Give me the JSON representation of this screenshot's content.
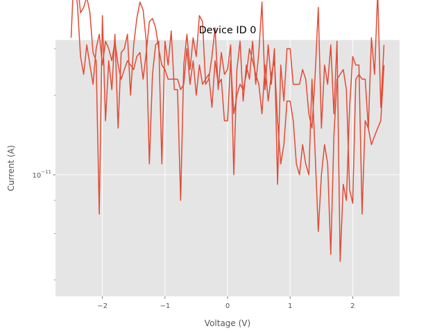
{
  "chart_data": {
    "type": "line",
    "title": "Device ID 0",
    "xlabel": "Voltage (V)",
    "ylabel": "Current (A)",
    "xlim": [
      -2.75,
      2.75
    ],
    "ylim_log10": [
      -11.46,
      -10.49
    ],
    "y_scale": "log",
    "grid": true,
    "x_ticks": [
      {
        "value": -2,
        "label": "−2"
      },
      {
        "value": -1,
        "label": "−1"
      },
      {
        "value": 0,
        "label": "0"
      },
      {
        "value": 1,
        "label": "1"
      },
      {
        "value": 2,
        "label": "2"
      }
    ],
    "y_ticks_major": [
      {
        "log10": -11,
        "base": "10",
        "exp": "−11"
      }
    ],
    "y_ticks_minor_log10": [
      -11.398,
      -11.222,
      -11.097,
      -10.699,
      -10.523
    ],
    "series": [
      {
        "color": "#E24A33",
        "x": [
          -2.5,
          -2.45,
          -2.4,
          -2.35,
          -2.3,
          -2.25,
          -2.2,
          -2.15,
          -2.1,
          -2.05,
          -2.0,
          -1.95,
          -1.9,
          -1.85,
          -1.8,
          -1.75,
          -1.7,
          -1.65,
          -1.6,
          -1.55,
          -1.5,
          -1.45,
          -1.4,
          -1.35,
          -1.3,
          -1.25,
          -1.2,
          -1.15,
          -1.1,
          -1.05,
          -1.0,
          -0.95,
          -0.9,
          -0.85,
          -0.8,
          -0.75,
          -0.7,
          -0.65,
          -0.6,
          -0.55,
          -0.5,
          -0.45,
          -0.4,
          -0.35,
          -0.3,
          -0.25,
          -0.2,
          -0.15,
          -0.1,
          -0.05,
          0.0,
          0.05,
          0.1,
          0.15,
          0.2,
          0.25,
          0.3,
          0.35,
          0.4,
          0.45,
          0.5,
          0.55,
          0.6,
          0.65,
          0.7,
          0.75,
          0.8,
          0.85,
          0.9,
          0.95,
          1.0,
          1.05,
          1.1,
          1.15,
          1.2,
          1.25,
          1.3,
          1.35,
          1.4,
          1.45,
          1.5,
          1.55,
          1.6,
          1.65,
          1.7,
          1.75,
          1.8,
          1.85,
          1.9,
          1.95,
          2.0,
          2.05,
          2.1,
          2.15,
          2.2,
          2.25,
          2.3,
          2.35,
          2.4,
          2.45,
          2.5
        ],
        "y": [
          5.6e-11,
          5.6e-11,
          4.4e-11,
          2.8e-11,
          2.4e-11,
          3.1e-11,
          2.6e-11,
          2.2e-11,
          3e-11,
          3.4e-11,
          2.6e-11,
          3.2e-11,
          3e-11,
          2.7e-11,
          3.2e-11,
          2.6e-11,
          2.3e-11,
          2.5e-11,
          2.7e-11,
          2.6e-11,
          2.5e-11,
          2.8e-11,
          2.9e-11,
          2.3e-11,
          2.9e-11,
          3.8e-11,
          3.9e-11,
          3.6e-11,
          3e-11,
          2.6e-11,
          2.5e-11,
          2.3e-11,
          2.3e-11,
          2.3e-11,
          2.3e-11,
          2.1e-11,
          2.2e-11,
          3e-11,
          2.2e-11,
          2.7e-11,
          2e-11,
          2.6e-11,
          2.2e-11,
          2.3e-11,
          2.4e-11,
          1.8e-11,
          2.7e-11,
          2.2e-11,
          2.3e-11,
          1.6e-11,
          1.6e-11,
          2.7e-11,
          1.7e-11,
          2e-11,
          2.2e-11,
          2.1e-11,
          2.4e-11,
          3e-11,
          2.7e-11,
          2.4e-11,
          2.2e-11,
          1.7e-11,
          2.6e-11,
          1.9e-11,
          2.4e-11,
          2.7e-11,
          1.6e-11,
          1.1e-11,
          1.3e-11,
          1.9e-11,
          1.9e-11,
          1.6e-11,
          1.1e-11,
          1e-11,
          1.3e-11,
          1.1e-11,
          1e-11,
          2.3e-11,
          1.2e-11,
          6.1e-12,
          1e-11,
          1.3e-11,
          1.1e-11,
          5e-12,
          1.4e-11,
          2.3e-11,
          2.4e-11,
          2.5e-11,
          2.1e-11,
          8.8e-12,
          7.8e-12,
          2.3e-11,
          2.4e-11,
          2.3e-11,
          2.3e-11,
          1.5e-11,
          1.3e-11,
          1.4e-11,
          1.5e-11,
          1.6e-11,
          2.6e-11
        ]
      },
      {
        "color": "#E24A33",
        "x": [
          -2.5,
          -2.45,
          -2.4,
          -2.35,
          -2.3,
          -2.25,
          -2.2,
          -2.15,
          -2.1,
          -2.05,
          -2.0,
          -1.95,
          -1.9,
          -1.85,
          -1.8,
          -1.75,
          -1.7,
          -1.65,
          -1.6,
          -1.55,
          -1.5,
          -1.45,
          -1.4,
          -1.35,
          -1.3,
          -1.25,
          -1.2,
          -1.15,
          -1.1,
          -1.05,
          -1.0,
          -0.95,
          -0.9,
          -0.85,
          -0.8,
          -0.75,
          -0.7,
          -0.65,
          -0.6,
          -0.55,
          -0.5,
          -0.45,
          -0.4,
          -0.35,
          -0.3,
          -0.25,
          -0.2,
          -0.15,
          -0.1,
          -0.05,
          0.0,
          0.05,
          0.1,
          0.15,
          0.2,
          0.25,
          0.3,
          0.35,
          0.4,
          0.45,
          0.5,
          0.55,
          0.6,
          0.65,
          0.7,
          0.75,
          0.8,
          0.85,
          0.9,
          0.95,
          1.0,
          1.05,
          1.1,
          1.15,
          1.2,
          1.25,
          1.3,
          1.35,
          1.4,
          1.45,
          1.5,
          1.55,
          1.6,
          1.65,
          1.7,
          1.75,
          1.8,
          1.85,
          1.9,
          1.95,
          2.0,
          2.05,
          2.1,
          2.15,
          2.2,
          2.25,
          2.3,
          2.35,
          2.4,
          2.45,
          2.5
        ],
        "y": [
          3.3e-11,
          6.2e-11,
          5.3e-11,
          4.1e-11,
          4.3e-11,
          4.7e-11,
          4.1e-11,
          2.9e-11,
          2.7e-11,
          7.1e-12,
          4e-11,
          1.6e-11,
          2.7e-11,
          2.1e-11,
          3.4e-11,
          1.5e-11,
          2.9e-11,
          3e-11,
          3.4e-11,
          2e-11,
          3.1e-11,
          3.9e-11,
          4.5e-11,
          4.2e-11,
          3.2e-11,
          1.1e-11,
          2.4e-11,
          3.1e-11,
          3.2e-11,
          1.1e-11,
          3.2e-11,
          2.6e-11,
          3.5e-11,
          2.1e-11,
          2.1e-11,
          8e-12,
          2.6e-11,
          3.4e-11,
          2.5e-11,
          3.3e-11,
          2.8e-11,
          4e-11,
          3.8e-11,
          2.2e-11,
          2.3e-11,
          2.8e-11,
          3.6e-11,
          2.1e-11,
          2.9e-11,
          2.4e-11,
          2.5e-11,
          3.1e-11,
          1e-11,
          2.5e-11,
          3.2e-11,
          1.9e-11,
          2.6e-11,
          2.3e-11,
          3.2e-11,
          2.2e-11,
          2.9e-11,
          4.5e-11,
          2.1e-11,
          3.1e-11,
          2.2e-11,
          3e-11,
          9.2e-12,
          2.6e-11,
          1.9e-11,
          3e-11,
          3e-11,
          2.2e-11,
          2.2e-11,
          2.2e-11,
          2.5e-11,
          2.3e-11,
          1.7e-11,
          1.5e-11,
          2.4e-11,
          4.3e-11,
          1.5e-11,
          2.6e-11,
          2.2e-11,
          3.1e-11,
          1.7e-11,
          3.2e-11,
          4.7e-12,
          9.2e-12,
          8e-12,
          1.8e-11,
          2.8e-11,
          2.6e-11,
          2.6e-11,
          7.1e-12,
          1.6e-11,
          1.5e-11,
          3.3e-11,
          2.4e-11,
          4.9e-11,
          1.8e-11,
          3.1e-11
        ]
      }
    ]
  }
}
